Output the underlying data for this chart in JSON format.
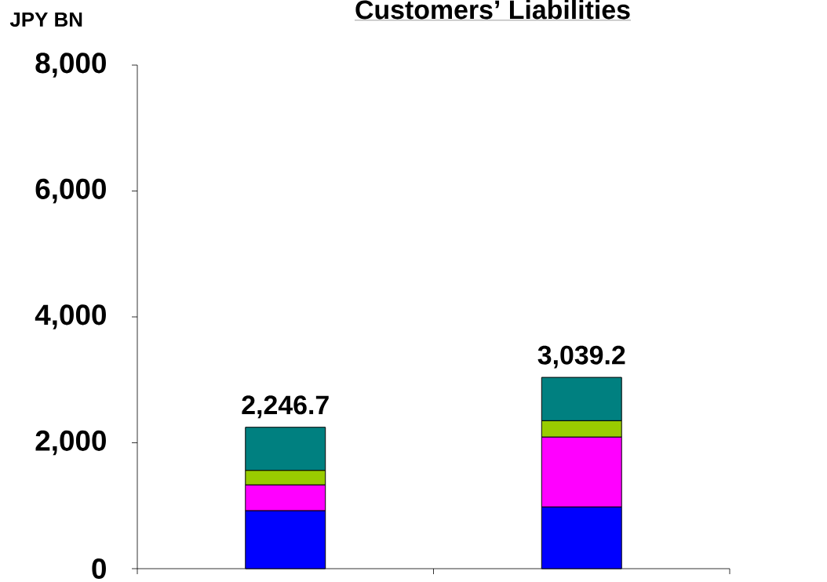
{
  "chart_data": {
    "type": "bar",
    "title": "Customers’ Liabilities",
    "ylabel": "JPY BN",
    "categories": [
      null,
      null
    ],
    "stacked": true,
    "series": [
      {
        "color": "#0000ff",
        "values": [
          920,
          980
        ]
      },
      {
        "color": "#ff00ff",
        "values": [
          410,
          1110
        ]
      },
      {
        "color": "#99cc00",
        "values": [
          230,
          260
        ]
      },
      {
        "color": "#008080",
        "values": [
          686.7,
          689.2
        ]
      }
    ],
    "totals": [
      "2,246.7",
      "3,039.2"
    ],
    "ylim": [
      0,
      8000
    ],
    "yticks": [
      0,
      {
        "value": 2000,
        "label": "2,000"
      },
      {
        "value": 4000,
        "label": "4,000"
      },
      {
        "value": 6000,
        "label": "6,000"
      },
      {
        "value": 8000,
        "label": "8,000"
      }
    ]
  }
}
